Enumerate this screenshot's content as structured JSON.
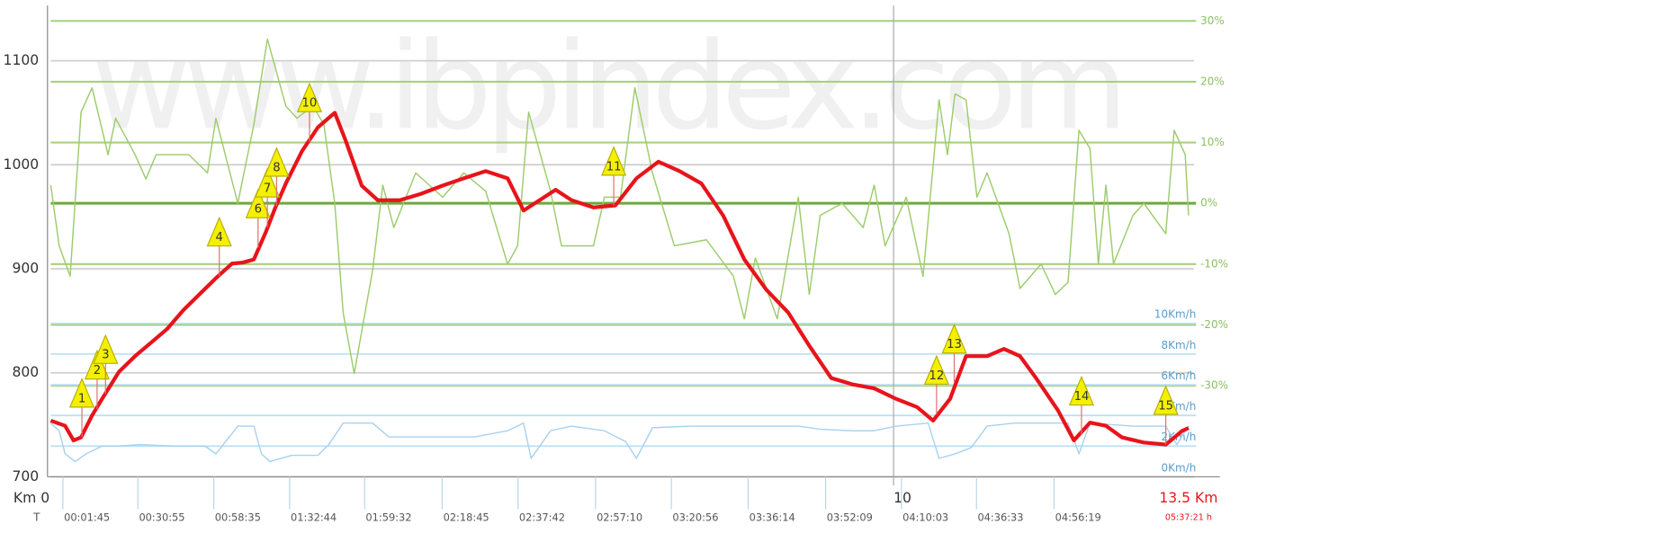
{
  "chart_data": {
    "type": "line",
    "watermark": "www.ibpindex.com",
    "xlim": [
      0,
      13.5
    ],
    "xticks": [
      {
        "value": 0,
        "label": "Km 0"
      },
      10,
      {
        "value": 13.5,
        "label": "13.5 Km"
      }
    ],
    "time_axis_label": "T",
    "time_ticks": [
      {
        "value": 0.08,
        "label": "00:01:45"
      },
      {
        "value": 0.97,
        "label": "00:30:55"
      },
      {
        "value": 1.87,
        "label": "00:58:35"
      },
      {
        "value": 2.77,
        "label": "01:32:44"
      },
      {
        "value": 3.66,
        "label": "01:59:32"
      },
      {
        "value": 4.58,
        "label": "02:18:45"
      },
      {
        "value": 5.48,
        "label": "02:37:42"
      },
      {
        "value": 6.4,
        "label": "02:57:10"
      },
      {
        "value": 7.3,
        "label": "03:20:56"
      },
      {
        "value": 8.21,
        "label": "03:36:14"
      },
      {
        "value": 9.13,
        "label": "03:52:09"
      },
      {
        "value": 10.03,
        "label": "04:10:03"
      },
      {
        "value": 10.92,
        "label": "04:36:33"
      },
      {
        "value": 11.84,
        "label": "04:56:19"
      },
      {
        "value": 13.5,
        "label": "05:37:21 h"
      }
    ],
    "ylim": [
      700,
      1150
    ],
    "yticks": [
      700,
      800,
      900,
      1000,
      1100
    ],
    "y2lim": [
      -45,
      32
    ],
    "y2ticks": [
      {
        "value": 30,
        "label": "30%"
      },
      {
        "value": 20,
        "label": "20%"
      },
      {
        "value": 10,
        "label": "10%"
      },
      {
        "value": 0,
        "label": "0%"
      },
      {
        "value": -10,
        "label": "-10%"
      },
      {
        "value": -20,
        "label": "-20%"
      },
      {
        "value": -30,
        "label": "-30%"
      }
    ],
    "y3lim": [
      0,
      30.5
    ],
    "y3ticks": [
      {
        "value": 10,
        "label": "10Km/h"
      },
      {
        "value": 8,
        "label": "8Km/h"
      },
      {
        "value": 6,
        "label": "6Km/h"
      },
      {
        "value": 4,
        "label": "4Km/h"
      },
      {
        "value": 2,
        "label": "2Km/h"
      },
      {
        "value": 0,
        "label": "0Km/h"
      }
    ],
    "grid": true,
    "series": [
      {
        "color": "#9ccc6c",
        "axis": "y2",
        "x": [
          0,
          0.1,
          0.23,
          0.36,
          0.49,
          0.68,
          0.77,
          1.0,
          1.13,
          1.25,
          1.64,
          1.86,
          1.96,
          2.22,
          2.41,
          2.57,
          2.79,
          2.92,
          3.11,
          3.24,
          3.37,
          3.47,
          3.6,
          3.82,
          3.94,
          4.07,
          4.33,
          4.65,
          4.9,
          5.16,
          5.42,
          5.54,
          5.67,
          5.93,
          6.06,
          6.44,
          6.57,
          6.76,
          6.93,
          7.14,
          7.4,
          7.78,
          8.1,
          8.23,
          8.36,
          8.62,
          8.87,
          9.0,
          9.13,
          9.39,
          9.64,
          9.77,
          9.9,
          10.15,
          10.35,
          10.54,
          10.64,
          10.73,
          10.86,
          10.99,
          11.11,
          11.37,
          11.5,
          11.75,
          11.92,
          12.07,
          12.2,
          12.33,
          12.43,
          12.52,
          12.61,
          12.84,
          12.97,
          13.23,
          13.33,
          13.46,
          13.5
        ],
        "values": [
          3,
          -7,
          -12,
          15,
          19,
          8,
          14,
          8,
          4,
          8,
          8,
          5,
          14,
          0,
          13,
          27,
          16,
          14,
          16,
          13,
          0,
          -18,
          -28,
          -11,
          3,
          -4,
          5,
          1,
          5,
          2,
          -10,
          -7,
          15,
          2,
          -7,
          -7,
          1,
          1,
          19,
          5,
          -7,
          -6,
          -12,
          -19,
          -9,
          -19,
          1,
          -15,
          -2,
          0,
          -4,
          3,
          -7,
          1,
          -12,
          17,
          8,
          18,
          17,
          1,
          5,
          -5,
          -14,
          -10,
          -15,
          -13,
          12,
          9,
          -10,
          3,
          -10,
          -2,
          0,
          -5,
          12,
          8,
          -2
        ]
      },
      {
        "color": "#a9d2ee",
        "axis": "y3",
        "x": [
          0,
          0.1,
          0.17,
          0.29,
          0.42,
          0.61,
          0.81,
          1.06,
          1.45,
          1.83,
          1.96,
          2.22,
          2.41,
          2.5,
          2.6,
          2.86,
          3.17,
          3.3,
          3.47,
          3.82,
          4.01,
          4.33,
          4.71,
          5.03,
          5.42,
          5.61,
          5.7,
          5.93,
          6.18,
          6.57,
          6.82,
          6.95,
          7.14,
          7.59,
          8.36,
          8.87,
          9.13,
          9.51,
          9.77,
          10.03,
          10.41,
          10.54,
          10.73,
          10.92,
          11.11,
          11.43,
          12.07,
          12.2,
          12.33,
          12.84,
          13.23,
          13.36,
          13.5
        ],
        "values": [
          3.5,
          3,
          1.5,
          1,
          1.5,
          2,
          2,
          2.1,
          2,
          2,
          1.5,
          3.3,
          3.3,
          1.5,
          1,
          1.4,
          1.4,
          2.1,
          3.5,
          3.5,
          2.6,
          2.6,
          2.6,
          2.6,
          3,
          3.5,
          1.2,
          3,
          3.3,
          3,
          2.3,
          1.2,
          3.2,
          3.3,
          3.3,
          3.3,
          3.1,
          3,
          3,
          3.3,
          3.5,
          1.2,
          1.5,
          1.9,
          3.3,
          3.5,
          3.5,
          1.5,
          3.5,
          3.3,
          3.3,
          2.1,
          3.3
        ]
      },
      {
        "color": "#e8141b",
        "axis": "y",
        "x": [
          0,
          0.17,
          0.27,
          0.36,
          0.49,
          0.61,
          0.81,
          1.0,
          1.19,
          1.38,
          1.57,
          1.77,
          1.96,
          2.15,
          2.28,
          2.41,
          2.55,
          2.66,
          2.79,
          2.98,
          3.17,
          3.37,
          3.5,
          3.69,
          3.88,
          4.14,
          4.39,
          4.65,
          4.9,
          5.16,
          5.42,
          5.61,
          5.8,
          5.99,
          6.18,
          6.44,
          6.7,
          6.95,
          7.21,
          7.46,
          7.72,
          7.98,
          8.23,
          8.49,
          8.75,
          9.0,
          9.26,
          9.51,
          9.77,
          10.03,
          10.28,
          10.47,
          10.67,
          10.86,
          11.11,
          11.31,
          11.5,
          11.69,
          11.95,
          12.14,
          12.33,
          12.52,
          12.71,
          12.97,
          13.23,
          13.42,
          13.5
        ],
        "values": [
          754,
          749,
          735,
          738,
          759,
          775,
          801,
          816,
          829,
          842,
          860,
          876,
          891,
          905,
          906,
          909,
          935,
          958,
          982,
          1013,
          1036,
          1050,
          1023,
          980,
          966,
          966,
          972,
          980,
          987,
          994,
          987,
          956,
          966,
          976,
          966,
          959,
          961,
          987,
          1003,
          994,
          982,
          951,
          909,
          880,
          858,
          826,
          795,
          789,
          785,
          775,
          767,
          754,
          775,
          816,
          816,
          823,
          816,
          795,
          764,
          735,
          752,
          749,
          738,
          733,
          731,
          744,
          747
        ]
      }
    ],
    "waypoints": [
      {
        "label": "1",
        "x": 0.37,
        "y": 738
      },
      {
        "label": "2",
        "x": 0.55,
        "y": 765
      },
      {
        "label": "3",
        "x": 0.65,
        "y": 780
      },
      {
        "label": "4",
        "x": 2.0,
        "y": 893
      },
      {
        "label": "6",
        "x": 2.46,
        "y": 920
      },
      {
        "label": "7",
        "x": 2.57,
        "y": 940
      },
      {
        "label": "8",
        "x": 2.68,
        "y": 960
      },
      {
        "label": "10",
        "x": 3.07,
        "y": 1022
      },
      {
        "label": "11",
        "x": 6.68,
        "y": 961
      },
      {
        "label": "12",
        "x": 10.51,
        "y": 760
      },
      {
        "label": "13",
        "x": 10.72,
        "y": 790
      },
      {
        "label": "14",
        "x": 12.23,
        "y": 740
      },
      {
        "label": "15",
        "x": 13.23,
        "y": 731
      }
    ]
  }
}
